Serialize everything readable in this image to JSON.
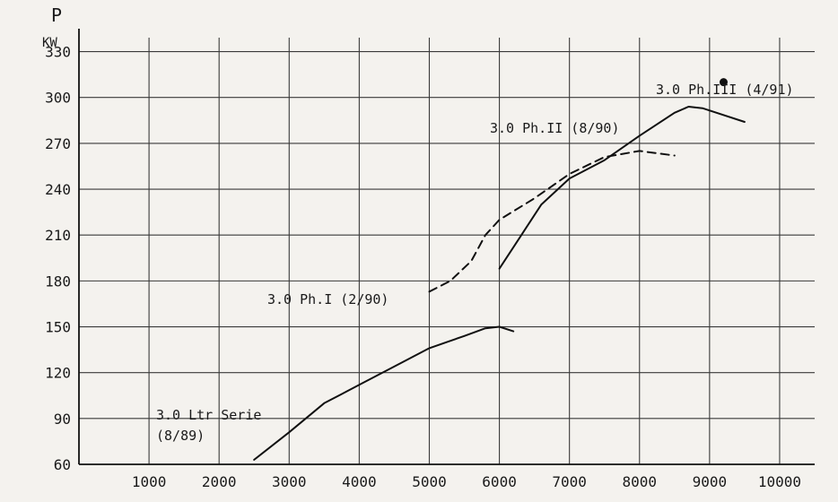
{
  "chart_data": {
    "type": "line",
    "ylabel_symbol": "P",
    "yunit": "KW",
    "xlim": [
      0,
      10500
    ],
    "ylim": [
      60,
      345
    ],
    "x_ticks": [
      1000,
      2000,
      3000,
      4000,
      5000,
      6000,
      7000,
      8000,
      9000,
      10000
    ],
    "y_ticks": [
      60,
      90,
      120,
      150,
      180,
      210,
      240,
      270,
      300,
      330
    ],
    "grid": true,
    "series": [
      {
        "name": "3.0 Ltr Serie (8/89)",
        "style": "solid",
        "x": [
          2500,
          3000,
          3500,
          4000,
          4500,
          5000,
          5500,
          5800,
          6000,
          6200
        ],
        "y": [
          63,
          81,
          100,
          112,
          124,
          136,
          144,
          149,
          150,
          147
        ]
      },
      {
        "name": "3.0 Ph.I (2/90)",
        "style": "dashed",
        "x": [
          5000,
          5300,
          5600,
          5800,
          6000,
          6500,
          7000,
          7500,
          8000,
          8500
        ],
        "y": [
          173,
          180,
          193,
          210,
          220,
          234,
          250,
          261,
          265,
          262
        ]
      },
      {
        "name": "3.0 Ph.II (8/90)",
        "style": "solid",
        "x": [
          6000,
          6300,
          6600,
          7000,
          7500,
          8000,
          8500,
          8700,
          8900,
          9500
        ],
        "y": [
          188,
          209,
          230,
          247,
          259,
          275,
          290,
          294,
          293,
          284
        ]
      },
      {
        "name": "3.0 Ph.III (4/91)",
        "style": "point",
        "x": [
          9200
        ],
        "y": [
          310
        ]
      }
    ],
    "labels": {
      "serie_line1": "3.0 Ltr Serie",
      "serie_line2": "(8/89)",
      "ph1": "3.0 Ph.I (2/90)",
      "ph2": "3.0 Ph.II (8/90)",
      "ph3": "3.0 Ph.III (4/91)"
    }
  }
}
